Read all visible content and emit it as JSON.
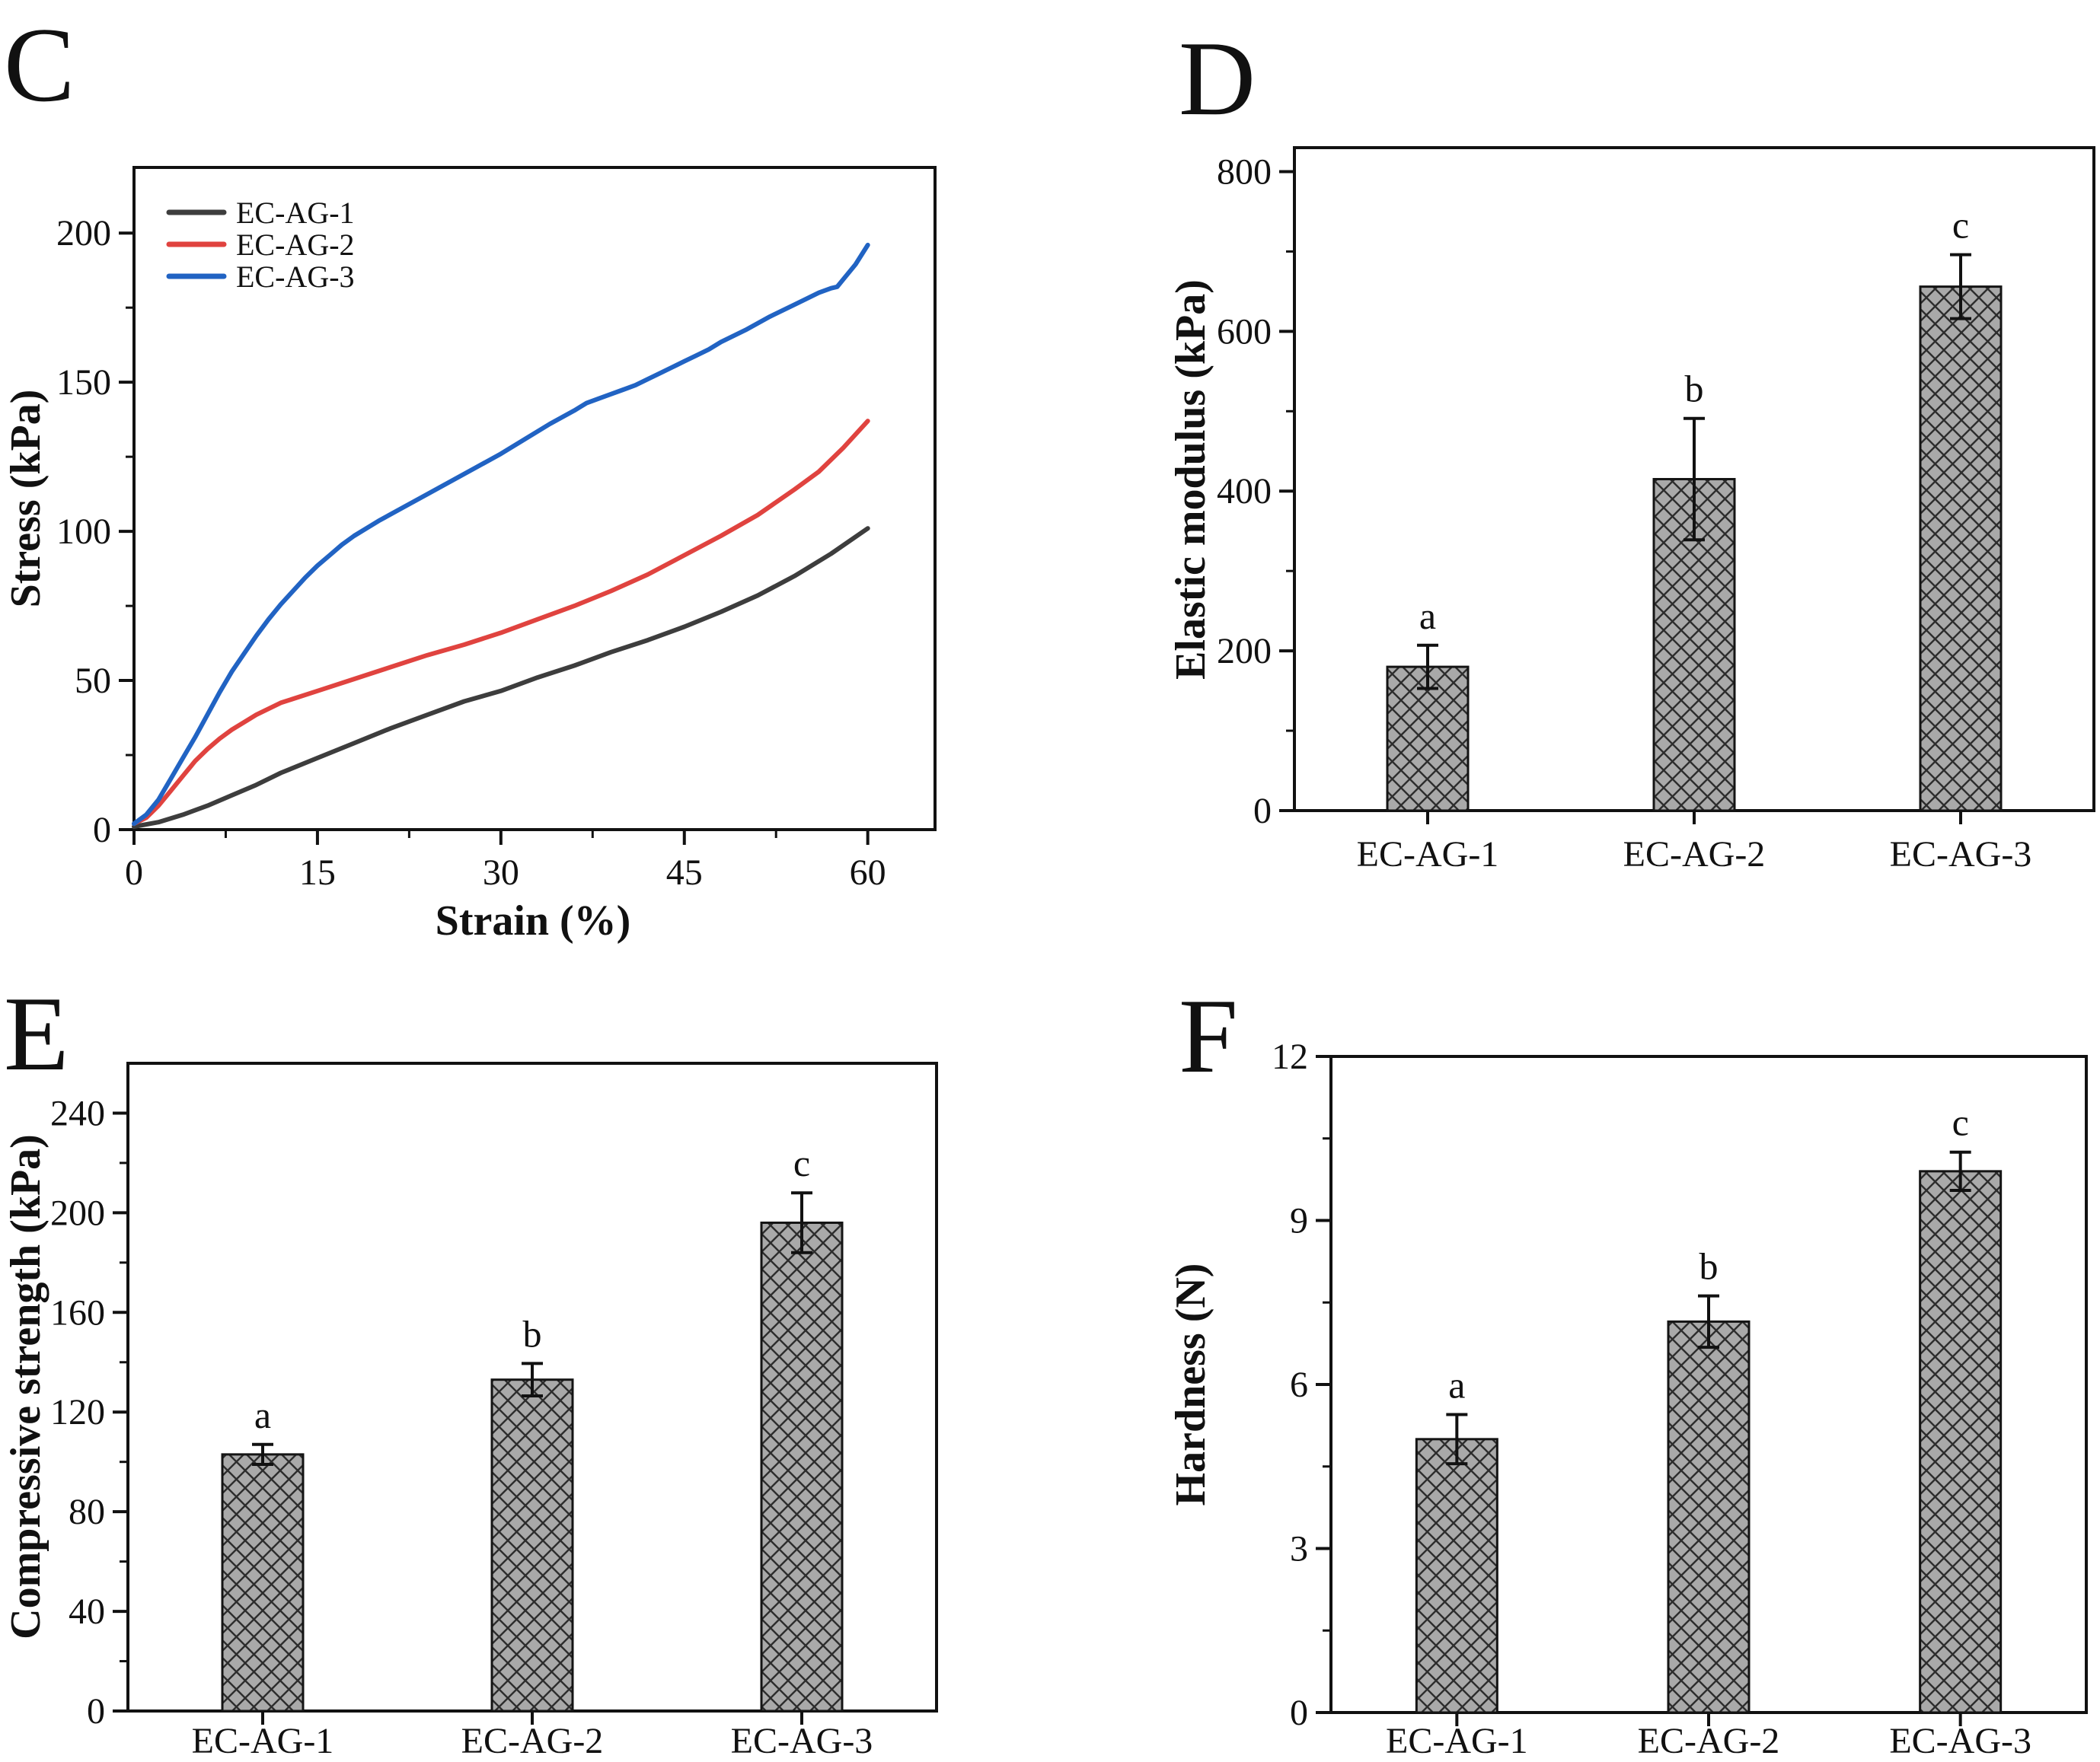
{
  "figure": {
    "background": "#ffffff",
    "axis_color": "#111111",
    "bar_fill": "#a9a9a9",
    "bar_hatch_color": "#2d2d2d",
    "bar_edge_color": "#141414",
    "error_bar_color": "#111111"
  },
  "panels": [
    {
      "letter": "C"
    },
    {
      "letter": "D"
    },
    {
      "letter": "E"
    },
    {
      "letter": "F"
    }
  ],
  "chart_data": [
    {
      "panel": "C",
      "type": "line",
      "title": "",
      "xlabel": "Strain (%)",
      "ylabel": "Stress (kPa)",
      "xlim": [
        0,
        65.5
      ],
      "ylim": [
        0,
        222
      ],
      "xticks": [
        0,
        15,
        30,
        45,
        60
      ],
      "yticks": [
        0,
        50,
        100,
        150,
        200
      ],
      "x_minor_step": 7.5,
      "y_minor_step": 25,
      "grid": false,
      "legend_position": "top-left",
      "series": [
        {
          "name": "EC-AG-1",
          "color": "#3d3d3d",
          "points": [
            [
              0,
              1
            ],
            [
              2,
              2.5
            ],
            [
              4,
              5
            ],
            [
              6,
              8
            ],
            [
              8,
              11.5
            ],
            [
              10,
              15
            ],
            [
              12,
              19
            ],
            [
              15,
              24
            ],
            [
              18,
              29
            ],
            [
              21,
              34
            ],
            [
              24,
              38.5
            ],
            [
              27,
              43
            ],
            [
              30,
              46.5
            ],
            [
              33,
              51
            ],
            [
              36,
              55
            ],
            [
              39,
              59.5
            ],
            [
              42,
              63.5
            ],
            [
              45,
              68
            ],
            [
              48,
              73
            ],
            [
              51,
              78.5
            ],
            [
              54,
              85
            ],
            [
              57,
              92.5
            ],
            [
              60,
              101
            ]
          ]
        },
        {
          "name": "EC-AG-2",
          "color": "#e0433f",
          "points": [
            [
              0,
              2
            ],
            [
              1,
              4
            ],
            [
              2,
              8
            ],
            [
              3,
              13
            ],
            [
              4,
              18
            ],
            [
              5,
              23
            ],
            [
              6,
              27
            ],
            [
              7,
              30.5
            ],
            [
              8,
              33.5
            ],
            [
              9,
              36
            ],
            [
              10,
              38.5
            ],
            [
              12,
              42.5
            ],
            [
              15,
              46.5
            ],
            [
              18,
              50.5
            ],
            [
              21,
              54.5
            ],
            [
              24,
              58.5
            ],
            [
              27,
              62
            ],
            [
              30,
              66
            ],
            [
              33,
              70.5
            ],
            [
              36,
              75
            ],
            [
              39,
              80
            ],
            [
              42,
              85.5
            ],
            [
              45,
              92
            ],
            [
              48,
              98.5
            ],
            [
              51,
              105.5
            ],
            [
              54,
              114
            ],
            [
              56,
              120
            ],
            [
              58,
              128
            ],
            [
              60,
              137
            ]
          ]
        },
        {
          "name": "EC-AG-3",
          "color": "#2163c3",
          "points": [
            [
              0,
              2
            ],
            [
              1,
              5
            ],
            [
              2,
              10
            ],
            [
              3,
              17
            ],
            [
              4,
              24
            ],
            [
              5,
              31
            ],
            [
              6,
              38.5
            ],
            [
              7,
              46
            ],
            [
              8,
              53
            ],
            [
              9,
              59
            ],
            [
              10,
              65
            ],
            [
              11,
              70.5
            ],
            [
              12,
              75.5
            ],
            [
              13,
              80
            ],
            [
              14,
              84.5
            ],
            [
              15,
              88.5
            ],
            [
              16,
              92
            ],
            [
              17,
              95.5
            ],
            [
              18,
              98.5
            ],
            [
              19,
              101
            ],
            [
              20,
              103.5
            ],
            [
              22,
              108
            ],
            [
              24,
              112.5
            ],
            [
              26,
              117
            ],
            [
              28,
              121.5
            ],
            [
              30,
              126
            ],
            [
              32,
              131
            ],
            [
              34,
              136
            ],
            [
              36,
              140.5
            ],
            [
              37,
              143
            ],
            [
              38,
              144.5
            ],
            [
              39,
              146
            ],
            [
              40,
              147.5
            ],
            [
              41,
              149
            ],
            [
              42,
              151
            ],
            [
              43,
              153
            ],
            [
              44,
              155
            ],
            [
              45,
              157
            ],
            [
              46,
              159
            ],
            [
              47,
              161
            ],
            [
              48,
              163.5
            ],
            [
              50,
              167.5
            ],
            [
              52,
              172
            ],
            [
              54,
              176
            ],
            [
              55,
              178
            ],
            [
              56,
              180
            ],
            [
              57,
              181.5
            ],
            [
              57.5,
              182
            ],
            [
              58,
              184.5
            ],
            [
              59,
              189.5
            ],
            [
              60,
              196
            ]
          ]
        }
      ]
    },
    {
      "panel": "D",
      "type": "bar",
      "title": "",
      "xlabel": "",
      "ylabel": "Elastic modulus (kPa)",
      "categories": [
        "EC-AG-1",
        "EC-AG-2",
        "EC-AG-3"
      ],
      "values": [
        180,
        415,
        656
      ],
      "errors": [
        27,
        76,
        40
      ],
      "sig_letters": [
        "a",
        "b",
        "c"
      ],
      "ylim": [
        0,
        830
      ],
      "yticks": [
        0,
        200,
        400,
        600,
        800
      ],
      "y_minor_step": 100,
      "grid": false
    },
    {
      "panel": "E",
      "type": "bar",
      "title": "",
      "xlabel": "",
      "ylabel": "Compressive strength (kPa)",
      "categories": [
        "EC-AG-1",
        "EC-AG-2",
        "EC-AG-3"
      ],
      "values": [
        103,
        133,
        196
      ],
      "errors": [
        4,
        6.5,
        12
      ],
      "sig_letters": [
        "a",
        "b",
        "c"
      ],
      "ylim": [
        0,
        260
      ],
      "yticks": [
        0,
        40,
        80,
        120,
        160,
        200,
        240
      ],
      "y_minor_step": 20,
      "grid": false
    },
    {
      "panel": "F",
      "type": "bar",
      "title": "",
      "xlabel": "",
      "ylabel": "Hardness (N)",
      "categories": [
        "EC-AG-1",
        "EC-AG-2",
        "EC-AG-3"
      ],
      "values": [
        5.0,
        7.15,
        9.9
      ],
      "errors": [
        0.45,
        0.47,
        0.35
      ],
      "sig_letters": [
        "a",
        "b",
        "c"
      ],
      "ylim": [
        0,
        12
      ],
      "yticks": [
        0,
        3,
        6,
        9,
        12
      ],
      "y_minor_step": 1.5,
      "grid": false
    }
  ]
}
